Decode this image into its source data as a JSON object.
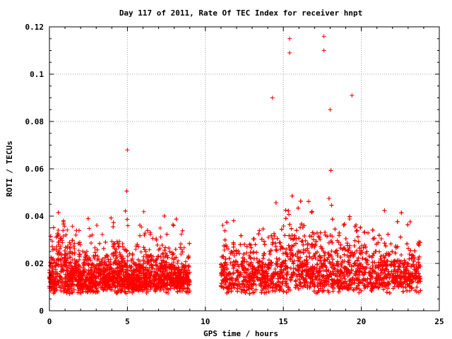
{
  "chart_data": {
    "type": "scatter",
    "title": "Day 117 of 2011, Rate Of TEC Index for receiver hnpt",
    "xlabel": "GPS time / hours",
    "ylabel": "ROTI / TECUs",
    "xlim": [
      0,
      25
    ],
    "ylim": [
      0,
      0.12
    ],
    "xticks": [
      "0",
      "5",
      "10",
      "15",
      "20",
      "25"
    ],
    "yticks": [
      "0",
      "0.02",
      "0.04",
      "0.06",
      "0.08",
      "0.1",
      "0.12"
    ],
    "grid": true,
    "marker": "+",
    "color": "#ff0000",
    "data_windows_hours": [
      [
        0,
        9
      ],
      [
        11,
        23.8
      ]
    ],
    "notable_points": [
      {
        "x": 15.4,
        "y": 0.115
      },
      {
        "x": 15.4,
        "y": 0.109
      },
      {
        "x": 17.6,
        "y": 0.116
      },
      {
        "x": 17.6,
        "y": 0.11
      },
      {
        "x": 19.4,
        "y": 0.091
      },
      {
        "x": 14.3,
        "y": 0.09
      },
      {
        "x": 5.0,
        "y": 0.068
      },
      {
        "x": 18.0,
        "y": 0.085
      }
    ]
  }
}
